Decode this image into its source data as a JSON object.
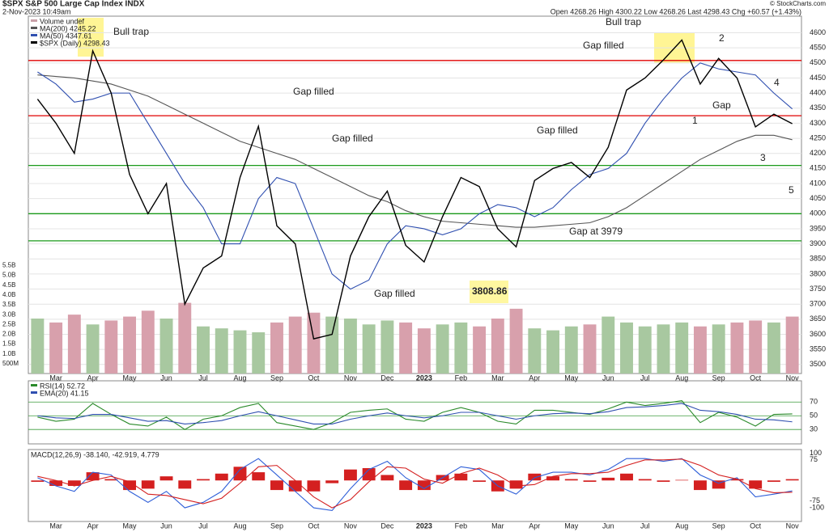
{
  "header": {
    "symbol": "$SPX S&P 500 Large Cap Index INDX",
    "date": "2-Nov-2023 10:49am",
    "quote": "Open 4268.26  High 4300.22  Low 4268.26  Last 4298.43  Chg +60.57 (+1.43%)",
    "credit": "© StockCharts.com"
  },
  "annotations": [
    "Bull trap",
    "Bull trap",
    "Gap filled",
    "Gap filled",
    "Gap filled",
    "Gap filled",
    "Gap filled",
    "Gap at 3979",
    "3808.86",
    "Gap",
    "1",
    "2",
    "3",
    "4",
    "5"
  ],
  "chart_data": [
    {
      "type": "line",
      "categories": [
        null,
        "Mar",
        null,
        "Apr",
        null,
        "May",
        null,
        "Jun",
        null,
        "Jul",
        null,
        "Aug",
        null,
        "Sep",
        null,
        "Oct",
        null,
        "Nov",
        null,
        "Dec",
        null,
        "2023",
        null,
        "Feb",
        null,
        "Mar",
        null,
        "Apr",
        null,
        "May",
        null,
        "Jun",
        null,
        "Jul",
        null,
        "Aug",
        null,
        "Sep",
        null,
        "Oct",
        null,
        "Nov"
      ],
      "ylim": [
        3470,
        4655
      ],
      "yticks": [
        3500,
        3550,
        3600,
        3650,
        3700,
        3750,
        3800,
        3850,
        3900,
        3950,
        4000,
        4050,
        4100,
        4150,
        4200,
        4250,
        4300,
        4350,
        4400,
        4450,
        4500,
        4550,
        4600
      ],
      "y2lim": [
        0,
        18200000000
      ],
      "y2ticks": [
        {
          "value": 500000000,
          "label": "500M"
        },
        {
          "value": 1000000000,
          "label": "1.0B"
        },
        {
          "value": 1500000000,
          "label": "1.5B"
        },
        {
          "value": 2000000000,
          "label": "2.0B"
        },
        {
          "value": 2500000000,
          "label": "2.5B"
        },
        {
          "value": 3000000000,
          "label": "3.0B"
        },
        {
          "value": 3500000000,
          "label": "3.5B"
        },
        {
          "value": 4000000000,
          "label": "4.0B"
        },
        {
          "value": 4500000000,
          "label": "4.5B"
        },
        {
          "value": 5000000000,
          "label": "5.0B"
        },
        {
          "value": 5500000000,
          "label": "5.5B"
        }
      ],
      "grid": true,
      "levels": [
        {
          "value": 4508,
          "color": "#e00000"
        },
        {
          "value": 4325,
          "color": "#e00000"
        },
        {
          "value": 4160,
          "color": "#1a9a1a"
        },
        {
          "value": 4000,
          "color": "#1a9a1a"
        },
        {
          "value": 3910,
          "color": "#1a9a1a"
        }
      ],
      "series": [
        {
          "name": "Volume undef",
          "type": "bar",
          "axis": "y2",
          "color": "#c9a0a8",
          "values": [
            2800000000,
            2600000000,
            3000000000,
            2500000000,
            2700000000,
            2900000000,
            3200000000,
            2800000000,
            3600000000,
            2400000000,
            2300000000,
            2200000000,
            2100000000,
            2600000000,
            2900000000,
            3100000000,
            2900000000,
            2800000000,
            2500000000,
            2700000000,
            2600000000,
            2300000000,
            2500000000,
            2600000000,
            2400000000,
            2800000000,
            3300000000,
            2300000000,
            2200000000,
            2400000000,
            2500000000,
            2900000000,
            2600000000,
            2400000000,
            2500000000,
            2600000000,
            2400000000,
            2500000000,
            2600000000,
            2700000000,
            2600000000,
            2900000000
          ]
        },
        {
          "name": "MA(200) 4245.22",
          "color": "#555555",
          "values": [
            4460,
            4455,
            4450,
            4440,
            4430,
            4410,
            4390,
            4360,
            4330,
            4300,
            4270,
            4240,
            4220,
            4200,
            4180,
            4150,
            4120,
            4090,
            4060,
            4040,
            4010,
            3990,
            3975,
            3970,
            3965,
            3960,
            3955,
            3955,
            3960,
            3965,
            3970,
            3990,
            4020,
            4060,
            4100,
            4140,
            4180,
            4210,
            4240,
            4260,
            4260,
            4245.22
          ]
        },
        {
          "name": "MA(50) 4347.61",
          "color": "#2f4fb0",
          "values": [
            4470,
            4430,
            4370,
            4380,
            4400,
            4400,
            4300,
            4200,
            4100,
            4020,
            3900,
            3900,
            4050,
            4120,
            4100,
            3950,
            3800,
            3750,
            3780,
            3900,
            3960,
            3950,
            3930,
            3950,
            4000,
            4030,
            4020,
            3990,
            4020,
            4080,
            4130,
            4150,
            4200,
            4300,
            4380,
            4450,
            4500,
            4480,
            4470,
            4460,
            4400,
            4347.61
          ]
        },
        {
          "name": "$SPX (Daily) 4298.43",
          "color": "#000000",
          "values": [
            4380,
            4300,
            4200,
            4540,
            4400,
            4130,
            4000,
            4100,
            3700,
            3820,
            3860,
            4120,
            4290,
            3960,
            3900,
            3585,
            3600,
            3860,
            3990,
            4075,
            3895,
            3840,
            3990,
            4120,
            4090,
            3950,
            3890,
            4110,
            4150,
            4170,
            4120,
            4220,
            4410,
            4450,
            4510,
            4576,
            4430,
            4515,
            4450,
            4288,
            4330,
            4298.43
          ]
        }
      ]
    },
    {
      "type": "line",
      "ylim": [
        9,
        101
      ],
      "yticks": [
        30,
        50,
        70
      ],
      "grid": true,
      "series": [
        {
          "name": "RSI(14) 52.72",
          "color": "#2a8a2a",
          "values": [
            48,
            42,
            45,
            68,
            52,
            38,
            35,
            48,
            30,
            45,
            50,
            62,
            68,
            40,
            35,
            30,
            40,
            55,
            58,
            60,
            45,
            42,
            55,
            62,
            55,
            42,
            38,
            58,
            58,
            55,
            52,
            60,
            70,
            65,
            68,
            72,
            40,
            55,
            48,
            35,
            52,
            52.72
          ]
        },
        {
          "name": "EMA(20) 41.15",
          "color": "#2f4fb0",
          "values": [
            50,
            47,
            46,
            52,
            52,
            47,
            42,
            43,
            38,
            40,
            43,
            50,
            56,
            50,
            44,
            38,
            38,
            45,
            50,
            54,
            50,
            47,
            50,
            55,
            55,
            50,
            45,
            50,
            53,
            54,
            53,
            56,
            62,
            63,
            65,
            68,
            58,
            56,
            52,
            45,
            44,
            41.15
          ]
        }
      ]
    },
    {
      "type": "line",
      "title": "MACD(12,26,9) -38.140, -42.919, 4.779",
      "ylim": [
        -150,
        113
      ],
      "yticks": [
        -100,
        -75,
        75,
        100
      ],
      "grid": false,
      "series": [
        {
          "type": "bar",
          "color": "#d42020",
          "values": [
            -5,
            -20,
            -20,
            30,
            5,
            -35,
            -30,
            15,
            -30,
            5,
            25,
            50,
            30,
            -35,
            -40,
            -40,
            -10,
            40,
            45,
            20,
            -35,
            -35,
            20,
            25,
            -5,
            -40,
            -30,
            25,
            15,
            5,
            -5,
            10,
            25,
            5,
            -5,
            2,
            -35,
            -30,
            5,
            -30,
            -5,
            4.779
          ]
        },
        {
          "color": "#2f5fd8",
          "values": [
            10,
            -20,
            -40,
            30,
            20,
            -40,
            -80,
            -40,
            -100,
            -80,
            -40,
            40,
            80,
            20,
            -40,
            -100,
            -110,
            -30,
            40,
            70,
            10,
            -30,
            10,
            50,
            40,
            -20,
            -50,
            10,
            30,
            30,
            20,
            40,
            80,
            80,
            70,
            80,
            20,
            -10,
            10,
            -60,
            -50,
            -38.14
          ]
        },
        {
          "color": "#d42020",
          "values": [
            15,
            0,
            -20,
            0,
            15,
            -5,
            -50,
            -55,
            -70,
            -85,
            -65,
            -10,
            50,
            55,
            0,
            -60,
            -100,
            -70,
            -5,
            50,
            45,
            5,
            -10,
            25,
            45,
            20,
            -20,
            -15,
            15,
            25,
            25,
            30,
            55,
            75,
            75,
            78,
            55,
            20,
            5,
            -30,
            -45,
            -42.919
          ]
        }
      ]
    }
  ]
}
